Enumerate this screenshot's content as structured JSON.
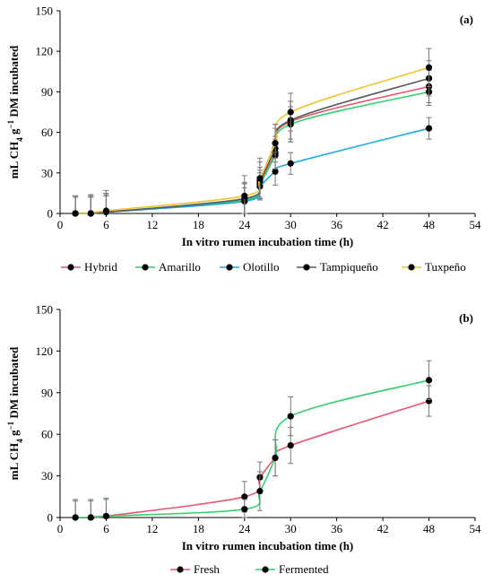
{
  "chart_data": [
    {
      "type": "line",
      "panel_label": "(a)",
      "ylabel_parts": [
        "mL CH",
        "4",
        " g",
        "−1",
        " DM incubated"
      ],
      "xlabel": "In vitro rumen incubation time (h)",
      "xlim": [
        0,
        54
      ],
      "ylim": [
        0,
        150
      ],
      "xticks": [
        "0",
        "6",
        "12",
        "18",
        "24",
        "30",
        "36",
        "42",
        "48",
        "54"
      ],
      "yticks": [
        "0",
        "30",
        "60",
        "90",
        "120",
        "150"
      ],
      "legend_position": "bottom",
      "x": [
        2,
        4,
        6,
        24,
        26,
        28,
        30,
        48
      ],
      "series": [
        {
          "name": "Hybrid",
          "color": "#e8546f",
          "values": [
            0,
            0,
            1,
            10,
            22,
            45,
            68,
            94
          ],
          "err": [
            13,
            13,
            14,
            12,
            12,
            12,
            15,
            12
          ]
        },
        {
          "name": "Amarillo",
          "color": "#2fcf6a",
          "values": [
            0,
            0,
            1,
            10,
            22,
            43,
            66,
            90
          ],
          "err": [
            13,
            13,
            13,
            12,
            10,
            12,
            13,
            10
          ]
        },
        {
          "name": "Olotillo",
          "color": "#21a9d6",
          "values": [
            0,
            0,
            1,
            9,
            20,
            31,
            37,
            63
          ],
          "err": [
            12,
            12,
            12,
            10,
            10,
            10,
            8,
            8
          ]
        },
        {
          "name": "Tampiqueño",
          "color": "#595959",
          "values": [
            0,
            0,
            1,
            11,
            24,
            48,
            69,
            100
          ],
          "err": [
            12,
            12,
            12,
            12,
            14,
            15,
            14,
            13
          ]
        },
        {
          "name": "Tuxpeño",
          "color": "#f2c12e",
          "values": [
            0,
            0,
            2,
            13,
            26,
            52,
            75,
            108
          ],
          "err": [
            13,
            14,
            15,
            15,
            15,
            14,
            14,
            14
          ]
        }
      ]
    },
    {
      "type": "line",
      "panel_label": "(b)",
      "ylabel_parts": [
        "mL CH",
        "4",
        " g",
        "−1",
        " DM incubated"
      ],
      "xlabel": "In vitro rumen incubation time (h)",
      "xlim": [
        0,
        54
      ],
      "ylim": [
        0,
        150
      ],
      "xticks": [
        "0",
        "6",
        "12",
        "18",
        "24",
        "30",
        "36",
        "42",
        "48",
        "54"
      ],
      "yticks": [
        "0",
        "30",
        "60",
        "90",
        "120",
        "150"
      ],
      "legend_position": "bottom",
      "x": [
        2,
        4,
        6,
        24,
        26,
        28,
        30,
        48
      ],
      "series": [
        {
          "name": "Fresh",
          "color": "#e8546f",
          "values": [
            0,
            0,
            1,
            15,
            29,
            43,
            52,
            84
          ],
          "err": [
            13,
            13,
            13,
            11,
            11,
            13,
            13,
            11
          ]
        },
        {
          "name": "Fermented",
          "color": "#2fcf6a",
          "values": [
            0,
            0,
            1,
            6,
            19,
            43,
            73,
            99
          ],
          "err": [
            12,
            12,
            12,
            7,
            14,
            13,
            14,
            14
          ]
        }
      ]
    }
  ]
}
